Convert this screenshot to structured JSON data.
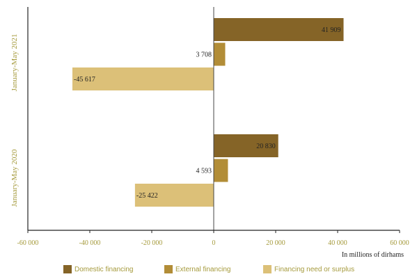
{
  "chart_data": {
    "type": "bar",
    "orientation": "horizontal",
    "categories": [
      "January-May 2021",
      "January-May 2020"
    ],
    "series": [
      {
        "name": "Domestic financing",
        "values": [
          41909,
          20830
        ],
        "labels": [
          "41 909",
          "20 830"
        ],
        "color": "#856427"
      },
      {
        "name": "External financing",
        "values": [
          3708,
          4593
        ],
        "labels": [
          "3 708",
          "4 593"
        ],
        "color": "#b28d37"
      },
      {
        "name": "Financing need or surplus",
        "values": [
          -45617,
          -25422
        ],
        "labels": [
          "-45 617",
          "-25 422"
        ],
        "color": "#dcc078"
      }
    ],
    "xlim": [
      -60000,
      60000
    ],
    "xticks": [
      -60000,
      -40000,
      -20000,
      0,
      20000,
      40000,
      60000
    ],
    "xtick_labels": [
      "-60 000",
      "-40 000",
      "-20 000",
      "0",
      "20 000",
      "40 000",
      "60 000"
    ],
    "unit_note": "In millions of dirhams",
    "legend_position": "bottom",
    "grid": false
  }
}
